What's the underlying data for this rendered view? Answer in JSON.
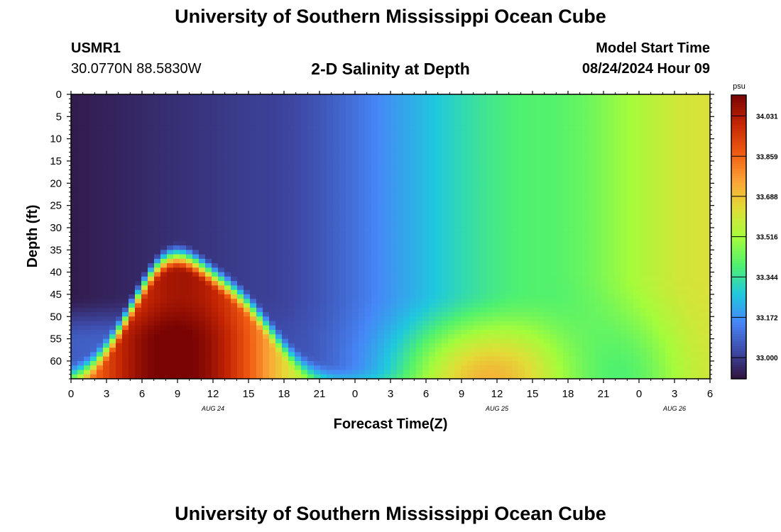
{
  "header": {
    "title": "University of Southern Mississippi Ocean Cube",
    "station": "USMR1",
    "coords": "30.0770N  88.5830W",
    "plot_title": "2-D Salinity at Depth",
    "model_label": "Model Start Time",
    "model_time": "08/24/2024 Hour 09"
  },
  "footer": {
    "title": "University of Southern Mississippi Ocean Cube"
  },
  "colors": {
    "palette": [
      "#30123b",
      "#3e4aa8",
      "#4686f7",
      "#1fc8de",
      "#4ff16f",
      "#a4fc3b",
      "#e1dd37",
      "#fca236",
      "#ef5a11",
      "#c42503",
      "#7a0403"
    ]
  },
  "chart_data": {
    "type": "heatmap",
    "title": "2-D Salinity at Depth",
    "xlabel": "Forecast Time(Z)",
    "ylabel": "Depth (ft)",
    "colorbar_unit": "psu",
    "x_range_hours": [
      0,
      54
    ],
    "y_range_ft": [
      0,
      64
    ],
    "x_tick_labels": [
      "0",
      "3",
      "6",
      "9",
      "12",
      "15",
      "18",
      "21",
      "0",
      "3",
      "6",
      "9",
      "12",
      "15",
      "18",
      "21",
      "0",
      "3",
      "6"
    ],
    "y_tick_labels": [
      "0",
      "5",
      "10",
      "15",
      "20",
      "25",
      "30",
      "35",
      "40",
      "45",
      "50",
      "55",
      "60"
    ],
    "y_tick_values": [
      0,
      5,
      10,
      15,
      20,
      25,
      30,
      35,
      40,
      45,
      50,
      55,
      60
    ],
    "date_labels": [
      {
        "label": "AUG 24",
        "hour": 12
      },
      {
        "label": "AUG 25",
        "hour": 36
      },
      {
        "label": "AUG 26",
        "hour": 51
      }
    ],
    "colorbar_ticks": [
      "33.000",
      "33.172",
      "33.344",
      "33.516",
      "33.688",
      "33.859",
      "34.031"
    ],
    "colorbar_values": [
      33.0,
      33.172,
      33.344,
      33.516,
      33.688,
      33.859,
      34.031
    ],
    "color_range": [
      32.91,
      34.12
    ]
  }
}
